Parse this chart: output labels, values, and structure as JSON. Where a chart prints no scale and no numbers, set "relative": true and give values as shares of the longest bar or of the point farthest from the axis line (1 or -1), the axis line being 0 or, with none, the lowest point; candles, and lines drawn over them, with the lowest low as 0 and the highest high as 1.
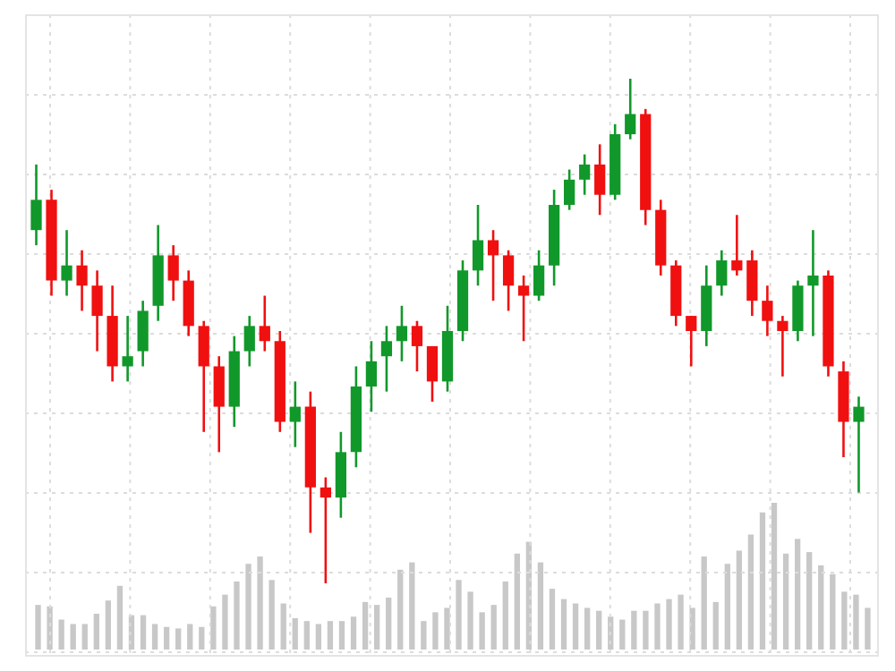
{
  "chart_data": [
    {
      "type": "candlestick",
      "relative": true,
      "grid": true,
      "categories": [
        null,
        null,
        null,
        null,
        null,
        null,
        null,
        null,
        null,
        null,
        null,
        null,
        null,
        null,
        null,
        null,
        null,
        null,
        null,
        null,
        null,
        null,
        null,
        null,
        null,
        null,
        null,
        null,
        null,
        null,
        null,
        null,
        null,
        null,
        null,
        null,
        null,
        null,
        null,
        null,
        null,
        null,
        null,
        null,
        null,
        null,
        null,
        null,
        null,
        null,
        null,
        null,
        null,
        null,
        null
      ],
      "ohlc": [
        [
          0.7,
          0.83,
          0.67,
          0.76
        ],
        [
          0.76,
          0.78,
          0.57,
          0.6
        ],
        [
          0.6,
          0.7,
          0.57,
          0.63
        ],
        [
          0.63,
          0.66,
          0.54,
          0.59
        ],
        [
          0.59,
          0.62,
          0.46,
          0.53
        ],
        [
          0.53,
          0.59,
          0.4,
          0.43
        ],
        [
          0.43,
          0.53,
          0.4,
          0.45
        ],
        [
          0.46,
          0.56,
          0.43,
          0.54
        ],
        [
          0.55,
          0.71,
          0.52,
          0.65
        ],
        [
          0.65,
          0.67,
          0.56,
          0.6
        ],
        [
          0.6,
          0.62,
          0.49,
          0.51
        ],
        [
          0.51,
          0.52,
          0.3,
          0.43
        ],
        [
          0.43,
          0.45,
          0.26,
          0.35
        ],
        [
          0.35,
          0.49,
          0.31,
          0.46
        ],
        [
          0.46,
          0.53,
          0.43,
          0.51
        ],
        [
          0.51,
          0.57,
          0.46,
          0.48
        ],
        [
          0.48,
          0.5,
          0.3,
          0.32
        ],
        [
          0.32,
          0.4,
          0.27,
          0.35
        ],
        [
          0.35,
          0.38,
          0.1,
          0.19
        ],
        [
          0.19,
          0.21,
          0,
          0.17
        ],
        [
          0.17,
          0.3,
          0.13,
          0.26
        ],
        [
          0.26,
          0.43,
          0.23,
          0.39
        ],
        [
          0.39,
          0.48,
          0.34,
          0.44
        ],
        [
          0.45,
          0.51,
          0.38,
          0.48
        ],
        [
          0.48,
          0.55,
          0.44,
          0.51
        ],
        [
          0.51,
          0.52,
          0.42,
          0.47
        ],
        [
          0.47,
          0.47,
          0.36,
          0.4
        ],
        [
          0.4,
          0.55,
          0.38,
          0.5
        ],
        [
          0.5,
          0.64,
          0.48,
          0.62
        ],
        [
          0.62,
          0.75,
          0.59,
          0.68
        ],
        [
          0.68,
          0.7,
          0.56,
          0.65
        ],
        [
          0.65,
          0.66,
          0.54,
          0.59
        ],
        [
          0.59,
          0.61,
          0.48,
          0.57
        ],
        [
          0.57,
          0.66,
          0.56,
          0.63
        ],
        [
          0.63,
          0.78,
          0.59,
          0.75
        ],
        [
          0.75,
          0.82,
          0.74,
          0.8
        ],
        [
          0.8,
          0.85,
          0.77,
          0.83
        ],
        [
          0.83,
          0.87,
          0.73,
          0.77
        ],
        [
          0.77,
          0.91,
          0.76,
          0.89
        ],
        [
          0.89,
          1,
          0.88,
          0.93
        ],
        [
          0.93,
          0.94,
          0.71,
          0.74
        ],
        [
          0.74,
          0.76,
          0.61,
          0.63
        ],
        [
          0.63,
          0.64,
          0.51,
          0.53
        ],
        [
          0.53,
          0.53,
          0.43,
          0.5
        ],
        [
          0.5,
          0.63,
          0.47,
          0.59
        ],
        [
          0.59,
          0.66,
          0.57,
          0.64
        ],
        [
          0.64,
          0.73,
          0.61,
          0.62
        ],
        [
          0.64,
          0.66,
          0.53,
          0.56
        ],
        [
          0.56,
          0.59,
          0.49,
          0.52
        ],
        [
          0.52,
          0.53,
          0.41,
          0.5
        ],
        [
          0.5,
          0.6,
          0.48,
          0.59
        ],
        [
          0.59,
          0.7,
          0.49,
          0.61
        ],
        [
          0.61,
          0.62,
          0.41,
          0.43
        ],
        [
          0.42,
          0.44,
          0.25,
          0.32
        ],
        [
          0.32,
          0.37,
          0.18,
          0.35
        ]
      ],
      "colors": [
        "#11982a",
        "#f01010",
        "#11982a",
        "#f01010",
        "#f01010",
        "#f01010",
        "#11982a",
        "#11982a",
        "#11982a",
        "#f01010",
        "#f01010",
        "#f01010",
        "#f01010",
        "#11982a",
        "#11982a",
        "#f01010",
        "#f01010",
        "#11982a",
        "#f01010",
        "#f01010",
        "#11982a",
        "#11982a",
        "#11982a",
        "#11982a",
        "#11982a",
        "#f01010",
        "#f01010",
        "#11982a",
        "#11982a",
        "#11982a",
        "#f01010",
        "#f01010",
        "#f01010",
        "#11982a",
        "#11982a",
        "#11982a",
        "#11982a",
        "#f01010",
        "#11982a",
        "#11982a",
        "#f01010",
        "#f01010",
        "#f01010",
        "#f01010",
        "#11982a",
        "#11982a",
        "#f01010",
        "#f01010",
        "#f01010",
        "#f01010",
        "#11982a",
        "#11982a",
        "#f01010",
        "#f01010",
        "#11982a"
      ]
    },
    {
      "type": "bar",
      "relative": true,
      "color": "#c8c8c8",
      "categories": [
        null,
        null,
        null,
        null,
        null,
        null,
        null,
        null,
        null,
        null,
        null,
        null,
        null,
        null,
        null,
        null,
        null,
        null,
        null,
        null,
        null,
        null,
        null,
        null,
        null,
        null,
        null,
        null,
        null,
        null,
        null,
        null,
        null,
        null,
        null,
        null,
        null,
        null,
        null,
        null,
        null,
        null,
        null,
        null,
        null,
        null,
        null,
        null,
        null,
        null,
        null,
        null,
        null,
        null,
        null,
        null,
        null,
        null,
        null,
        null,
        null,
        null,
        null,
        null,
        null,
        null,
        null,
        null,
        null,
        null,
        null,
        null
      ],
      "values": [
        0.3,
        0.29,
        0.2,
        0.17,
        0.17,
        0.24,
        0.33,
        0.43,
        0.23,
        0.23,
        0.17,
        0.15,
        0.14,
        0.17,
        0.15,
        0.29,
        0.37,
        0.46,
        0.58,
        0.63,
        0.47,
        0.31,
        0.21,
        0.19,
        0.17,
        0.19,
        0.19,
        0.22,
        0.32,
        0.3,
        0.35,
        0.54,
        0.59,
        0.19,
        0.25,
        0.28,
        0.47,
        0.39,
        0.25,
        0.3,
        0.46,
        0.65,
        0.73,
        0.59,
        0.41,
        0.34,
        0.31,
        0.28,
        0.26,
        0.22,
        0.2,
        0.26,
        0.26,
        0.31,
        0.34,
        0.37,
        0.28,
        0.63,
        0.32,
        0.58,
        0.67,
        0.78,
        0.93,
        1,
        0.65,
        0.75,
        0.66,
        0.57,
        0.51,
        0.39,
        0.37,
        0.28
      ]
    }
  ]
}
